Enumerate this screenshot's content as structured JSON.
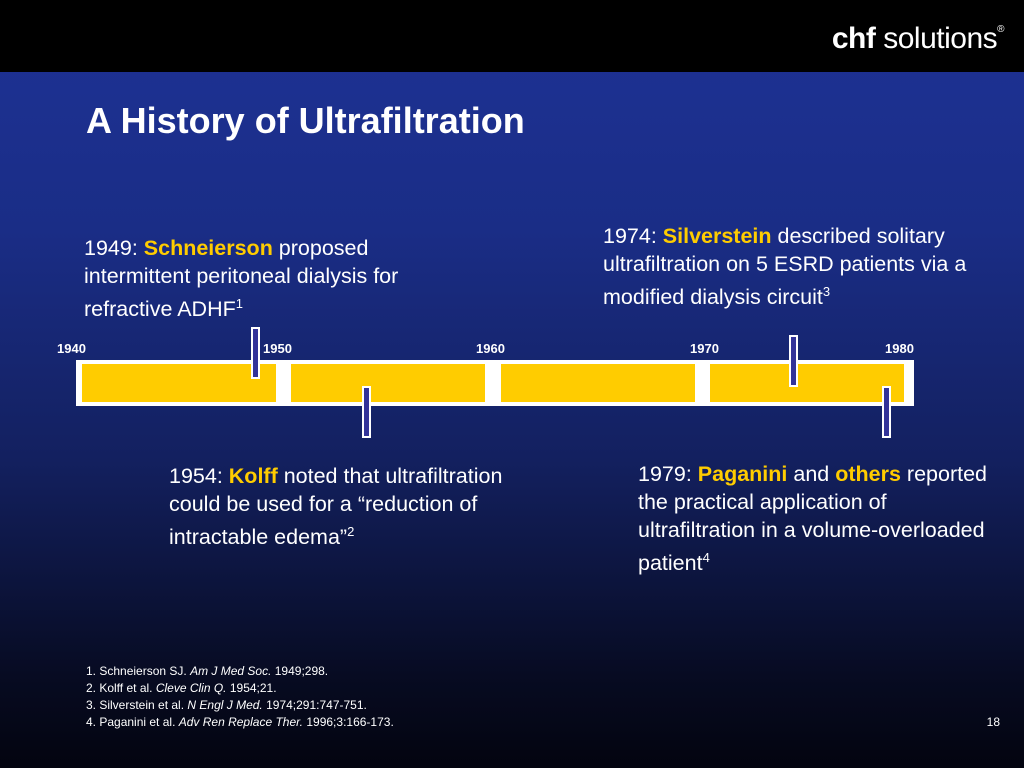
{
  "logo": {
    "chf": "chf",
    "solutions": "solutions",
    "reg": "®"
  },
  "title": "A History of Ultrafiltration",
  "timeline": {
    "years": [
      "1940",
      "1950",
      "1960",
      "1970",
      "1980"
    ]
  },
  "events": [
    {
      "prefix": "1949: ",
      "name": "Schneierson",
      "rest": " proposed intermittent peritoneal dialysis for refractive ADHF",
      "ref": "1"
    },
    {
      "prefix": "1954: ",
      "name": "Kolff",
      "rest": " noted that ultrafiltration could be used for a “reduction of intractable edema”",
      "ref": "2"
    },
    {
      "prefix": "1974: ",
      "name": "Silverstein",
      "rest": " described solitary ultrafiltration on 5 ESRD patients via a modified dialysis circuit",
      "ref": "3"
    },
    {
      "prefix": "1979: ",
      "name": "Paganini",
      "mid": " and ",
      "name2": "others",
      "rest": " reported the practical application of ultrafiltration in a volume-overloaded patient",
      "ref": "4"
    }
  ],
  "references": [
    {
      "pre": "1. Schneierson SJ. ",
      "journal": "Am J Med Soc.",
      "post": " 1949;298."
    },
    {
      "pre": "2. Kolff et al. ",
      "journal": "Cleve Clin Q.",
      "post": " 1954;21."
    },
    {
      "pre": "3. Silverstein et al. ",
      "journal": "N Engl J Med.",
      "post": " 1974;291:747-751."
    },
    {
      "pre": "4. Paganini et al. ",
      "journal": "Adv Ren Replace Ther.",
      "post": " 1996;3:166-173."
    }
  ],
  "page_number": "18"
}
